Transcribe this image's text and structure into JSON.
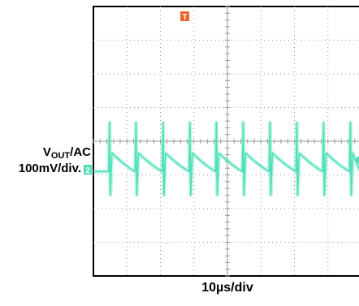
{
  "chart_data": {
    "type": "line",
    "title": "",
    "ylabel_main": "V",
    "ylabel_sub": "OUT",
    "ylabel_suffix": "/AC",
    "ylabel_scale": "100mV/div.",
    "xlabel": "10µs/div",
    "grid": true,
    "divisions": {
      "x": 8,
      "y": 8
    },
    "channel_marker": "2",
    "trigger_marker": "T",
    "series": [
      {
        "color": "#4fe0b8",
        "spike_times_div": [
          0.48,
          1.27,
          2.08,
          2.88,
          3.67,
          4.47,
          5.27,
          6.07,
          6.87,
          7.67
        ],
        "spike_peak_div": 0.55,
        "spike_trough_div": -1.6,
        "ripple_high_div": -0.35,
        "ripple_low_div": -0.9
      }
    ],
    "colors": {
      "trace": "#4fe0b8",
      "trigger": "#e8642a",
      "grid": "#9a9a9a",
      "frame": "#000000"
    }
  }
}
